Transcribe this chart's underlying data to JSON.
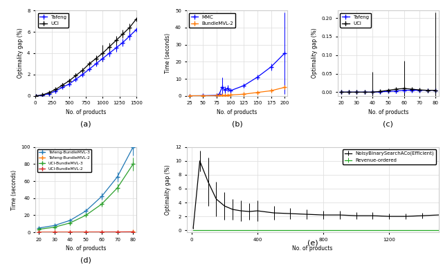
{
  "fig_width": 6.4,
  "fig_height": 3.82,
  "background_color": "#ffffff",
  "a": {
    "xlabel": "No. of products",
    "ylabel": "Optimality gap (%)",
    "xlim": [
      0,
      1500
    ],
    "ylim": [
      0,
      8
    ],
    "yticks": [
      0,
      2,
      4,
      6,
      8
    ],
    "xticks": [
      0,
      250,
      500,
      750,
      1000,
      1250,
      1500
    ],
    "label": "(a)",
    "tafeng_x": [
      10,
      100,
      200,
      300,
      400,
      500,
      600,
      700,
      800,
      900,
      1000,
      1100,
      1200,
      1300,
      1400,
      1500
    ],
    "tafeng_y": [
      0.0,
      0.05,
      0.2,
      0.45,
      0.8,
      1.1,
      1.55,
      2.0,
      2.5,
      3.0,
      3.5,
      4.0,
      4.5,
      5.0,
      5.6,
      6.2
    ],
    "tafeng_err": [
      0.0,
      0.02,
      0.05,
      0.08,
      0.1,
      0.15,
      0.15,
      0.2,
      0.2,
      0.25,
      0.3,
      0.3,
      0.35,
      0.35,
      0.4,
      0.4
    ],
    "uci_x": [
      10,
      100,
      200,
      300,
      400,
      500,
      600,
      700,
      800,
      900,
      1000,
      1100,
      1200,
      1300,
      1400,
      1500
    ],
    "uci_y": [
      0.0,
      0.08,
      0.3,
      0.6,
      1.0,
      1.4,
      1.9,
      2.4,
      3.0,
      3.5,
      4.0,
      4.6,
      5.2,
      5.8,
      6.4,
      7.2
    ],
    "uci_err": [
      0.0,
      0.04,
      0.08,
      0.15,
      0.2,
      0.2,
      0.2,
      0.25,
      0.25,
      0.3,
      0.8,
      0.4,
      0.4,
      0.4,
      0.4,
      0.5
    ]
  },
  "b": {
    "xlabel": "No. of products",
    "ylabel": "Time (seconds)",
    "xlim": [
      20,
      205
    ],
    "ylim": [
      0,
      50
    ],
    "yticks": [
      0,
      10,
      20,
      30,
      40,
      50
    ],
    "xticks": [
      25,
      50,
      75,
      100,
      125,
      150,
      175,
      200
    ],
    "label": "(b)",
    "mmc_x": [
      25,
      50,
      75,
      80,
      85,
      90,
      95,
      100,
      125,
      150,
      175,
      200
    ],
    "mmc_y": [
      0.05,
      0.1,
      0.3,
      1.0,
      5.0,
      3.5,
      4.5,
      3.0,
      6.0,
      11.0,
      17.0,
      25.0
    ],
    "mmc_err": [
      0.01,
      0.05,
      0.2,
      0.5,
      6.0,
      2.0,
      2.0,
      1.5,
      1.0,
      1.5,
      2.0,
      24.0
    ],
    "bundle_x": [
      25,
      50,
      75,
      80,
      85,
      90,
      95,
      100,
      125,
      150,
      175,
      200
    ],
    "bundle_y": [
      0.02,
      0.05,
      0.1,
      0.15,
      0.2,
      0.25,
      0.35,
      0.5,
      1.0,
      2.0,
      3.0,
      5.0
    ],
    "bundle_err": [
      0.005,
      0.01,
      0.02,
      0.03,
      0.05,
      0.05,
      0.08,
      0.1,
      0.2,
      0.3,
      0.5,
      1.0
    ]
  },
  "c": {
    "xlabel": "No. of products",
    "ylabel": "Optimality gap (%)",
    "xlim": [
      18,
      82
    ],
    "ylim": [
      -0.01,
      0.22
    ],
    "yticks": [
      0.0,
      0.05,
      0.1,
      0.15,
      0.2
    ],
    "xticks": [
      20,
      30,
      40,
      50,
      60,
      70,
      80
    ],
    "label": "(c)",
    "tafeng_x": [
      20,
      25,
      30,
      35,
      40,
      45,
      50,
      55,
      60,
      65,
      70,
      75,
      80
    ],
    "tafeng_y": [
      0.0,
      0.0,
      0.0,
      0.0,
      0.0,
      0.001,
      0.002,
      0.003,
      0.005,
      0.005,
      0.005,
      0.005,
      0.005
    ],
    "tafeng_err": [
      0.0,
      0.0,
      0.0,
      0.0,
      0.0,
      0.0005,
      0.001,
      0.001,
      0.001,
      0.001,
      0.001,
      0.001,
      0.001
    ],
    "uci_x": [
      20,
      25,
      30,
      35,
      40,
      45,
      50,
      55,
      60,
      65,
      70,
      75,
      80
    ],
    "uci_y": [
      0.0,
      0.0,
      0.0,
      0.0,
      0.0,
      0.002,
      0.005,
      0.008,
      0.01,
      0.008,
      0.006,
      0.005,
      0.005
    ],
    "uci_err": [
      0.0,
      0.0,
      0.0,
      0.0,
      0.055,
      0.003,
      0.004,
      0.004,
      0.075,
      0.003,
      0.002,
      0.002,
      0.21
    ]
  },
  "d": {
    "xlabel": "No. of products",
    "ylabel": "Time (seconds)",
    "xlim": [
      18,
      82
    ],
    "ylim": [
      0,
      100
    ],
    "yticks": [
      0,
      20,
      40,
      60,
      80,
      100
    ],
    "xticks": [
      20,
      30,
      40,
      50,
      60,
      70,
      80
    ],
    "label": "(d)",
    "series": [
      {
        "label": "Tafeng-BundleMVL-3",
        "color": "#1f77b4",
        "x": [
          20,
          30,
          40,
          50,
          60,
          70,
          80
        ],
        "y": [
          5.0,
          8.0,
          14.0,
          25.0,
          42.0,
          65.0,
          100.0
        ],
        "err": [
          0.5,
          1.0,
          1.5,
          2.5,
          4.0,
          6.0,
          10.0
        ]
      },
      {
        "label": "Tafeng-BundleMVL-2",
        "color": "#ff7f0e",
        "x": [
          20,
          30,
          40,
          50,
          60,
          70,
          80
        ],
        "y": [
          0.1,
          0.15,
          0.2,
          0.3,
          0.4,
          0.5,
          0.6
        ],
        "err": [
          0.01,
          0.02,
          0.02,
          0.03,
          0.05,
          0.05,
          0.08
        ]
      },
      {
        "label": "UCI-BundleMVL-3",
        "color": "#2ca02c",
        "x": [
          20,
          30,
          40,
          50,
          60,
          70,
          80
        ],
        "y": [
          3.5,
          6.0,
          11.0,
          20.0,
          33.0,
          52.0,
          80.0
        ],
        "err": [
          0.3,
          0.8,
          1.2,
          2.0,
          3.0,
          5.0,
          8.0
        ]
      },
      {
        "label": "UCI-BundleMVL-2",
        "color": "#d62728",
        "x": [
          20,
          30,
          40,
          50,
          60,
          70,
          80
        ],
        "y": [
          0.08,
          0.1,
          0.15,
          0.2,
          0.3,
          0.4,
          0.5
        ],
        "err": [
          0.01,
          0.01,
          0.015,
          0.02,
          0.03,
          0.04,
          0.05
        ]
      }
    ]
  },
  "e": {
    "xlabel": "No. of products",
    "ylabel": "Optimality gap (%)",
    "xlim": [
      -30,
      1500
    ],
    "ylim": [
      -0.3,
      12
    ],
    "yticks": [
      0,
      2,
      4,
      6,
      8,
      10,
      12
    ],
    "xticks": [
      0,
      400,
      800,
      1200
    ],
    "label": "(e)",
    "noisy_x": [
      10,
      50,
      100,
      150,
      200,
      250,
      300,
      350,
      400,
      500,
      600,
      700,
      800,
      900,
      1000,
      1100,
      1200,
      1300,
      1400,
      1500
    ],
    "noisy_y": [
      0.3,
      10.0,
      7.0,
      4.5,
      3.5,
      3.0,
      2.8,
      2.7,
      2.8,
      2.5,
      2.4,
      2.3,
      2.2,
      2.2,
      2.1,
      2.1,
      2.0,
      2.0,
      2.1,
      2.2
    ],
    "noisy_err": [
      0.1,
      1.5,
      3.5,
      2.5,
      2.0,
      1.5,
      1.5,
      1.2,
      1.5,
      1.0,
      0.8,
      0.7,
      0.6,
      0.6,
      0.5,
      0.5,
      0.4,
      0.4,
      0.4,
      1.2
    ],
    "revenue_x": [
      10,
      50,
      100,
      150,
      200,
      250,
      300,
      350,
      400,
      500,
      600,
      700,
      800,
      900,
      1000,
      1100,
      1200,
      1300,
      1400,
      1500
    ],
    "revenue_y": [
      0.0,
      0.0,
      0.0,
      0.0,
      0.0,
      0.0,
      0.0,
      0.0,
      0.0,
      0.0,
      0.0,
      0.0,
      0.0,
      0.0,
      0.0,
      0.0,
      0.0,
      0.0,
      0.0,
      0.0
    ],
    "revenue_err": [
      0.0,
      0.0,
      0.0,
      0.0,
      0.0,
      0.0,
      0.0,
      0.0,
      0.0,
      0.0,
      0.0,
      0.0,
      0.0,
      0.0,
      0.0,
      0.0,
      0.0,
      0.0,
      0.0,
      0.0
    ]
  }
}
